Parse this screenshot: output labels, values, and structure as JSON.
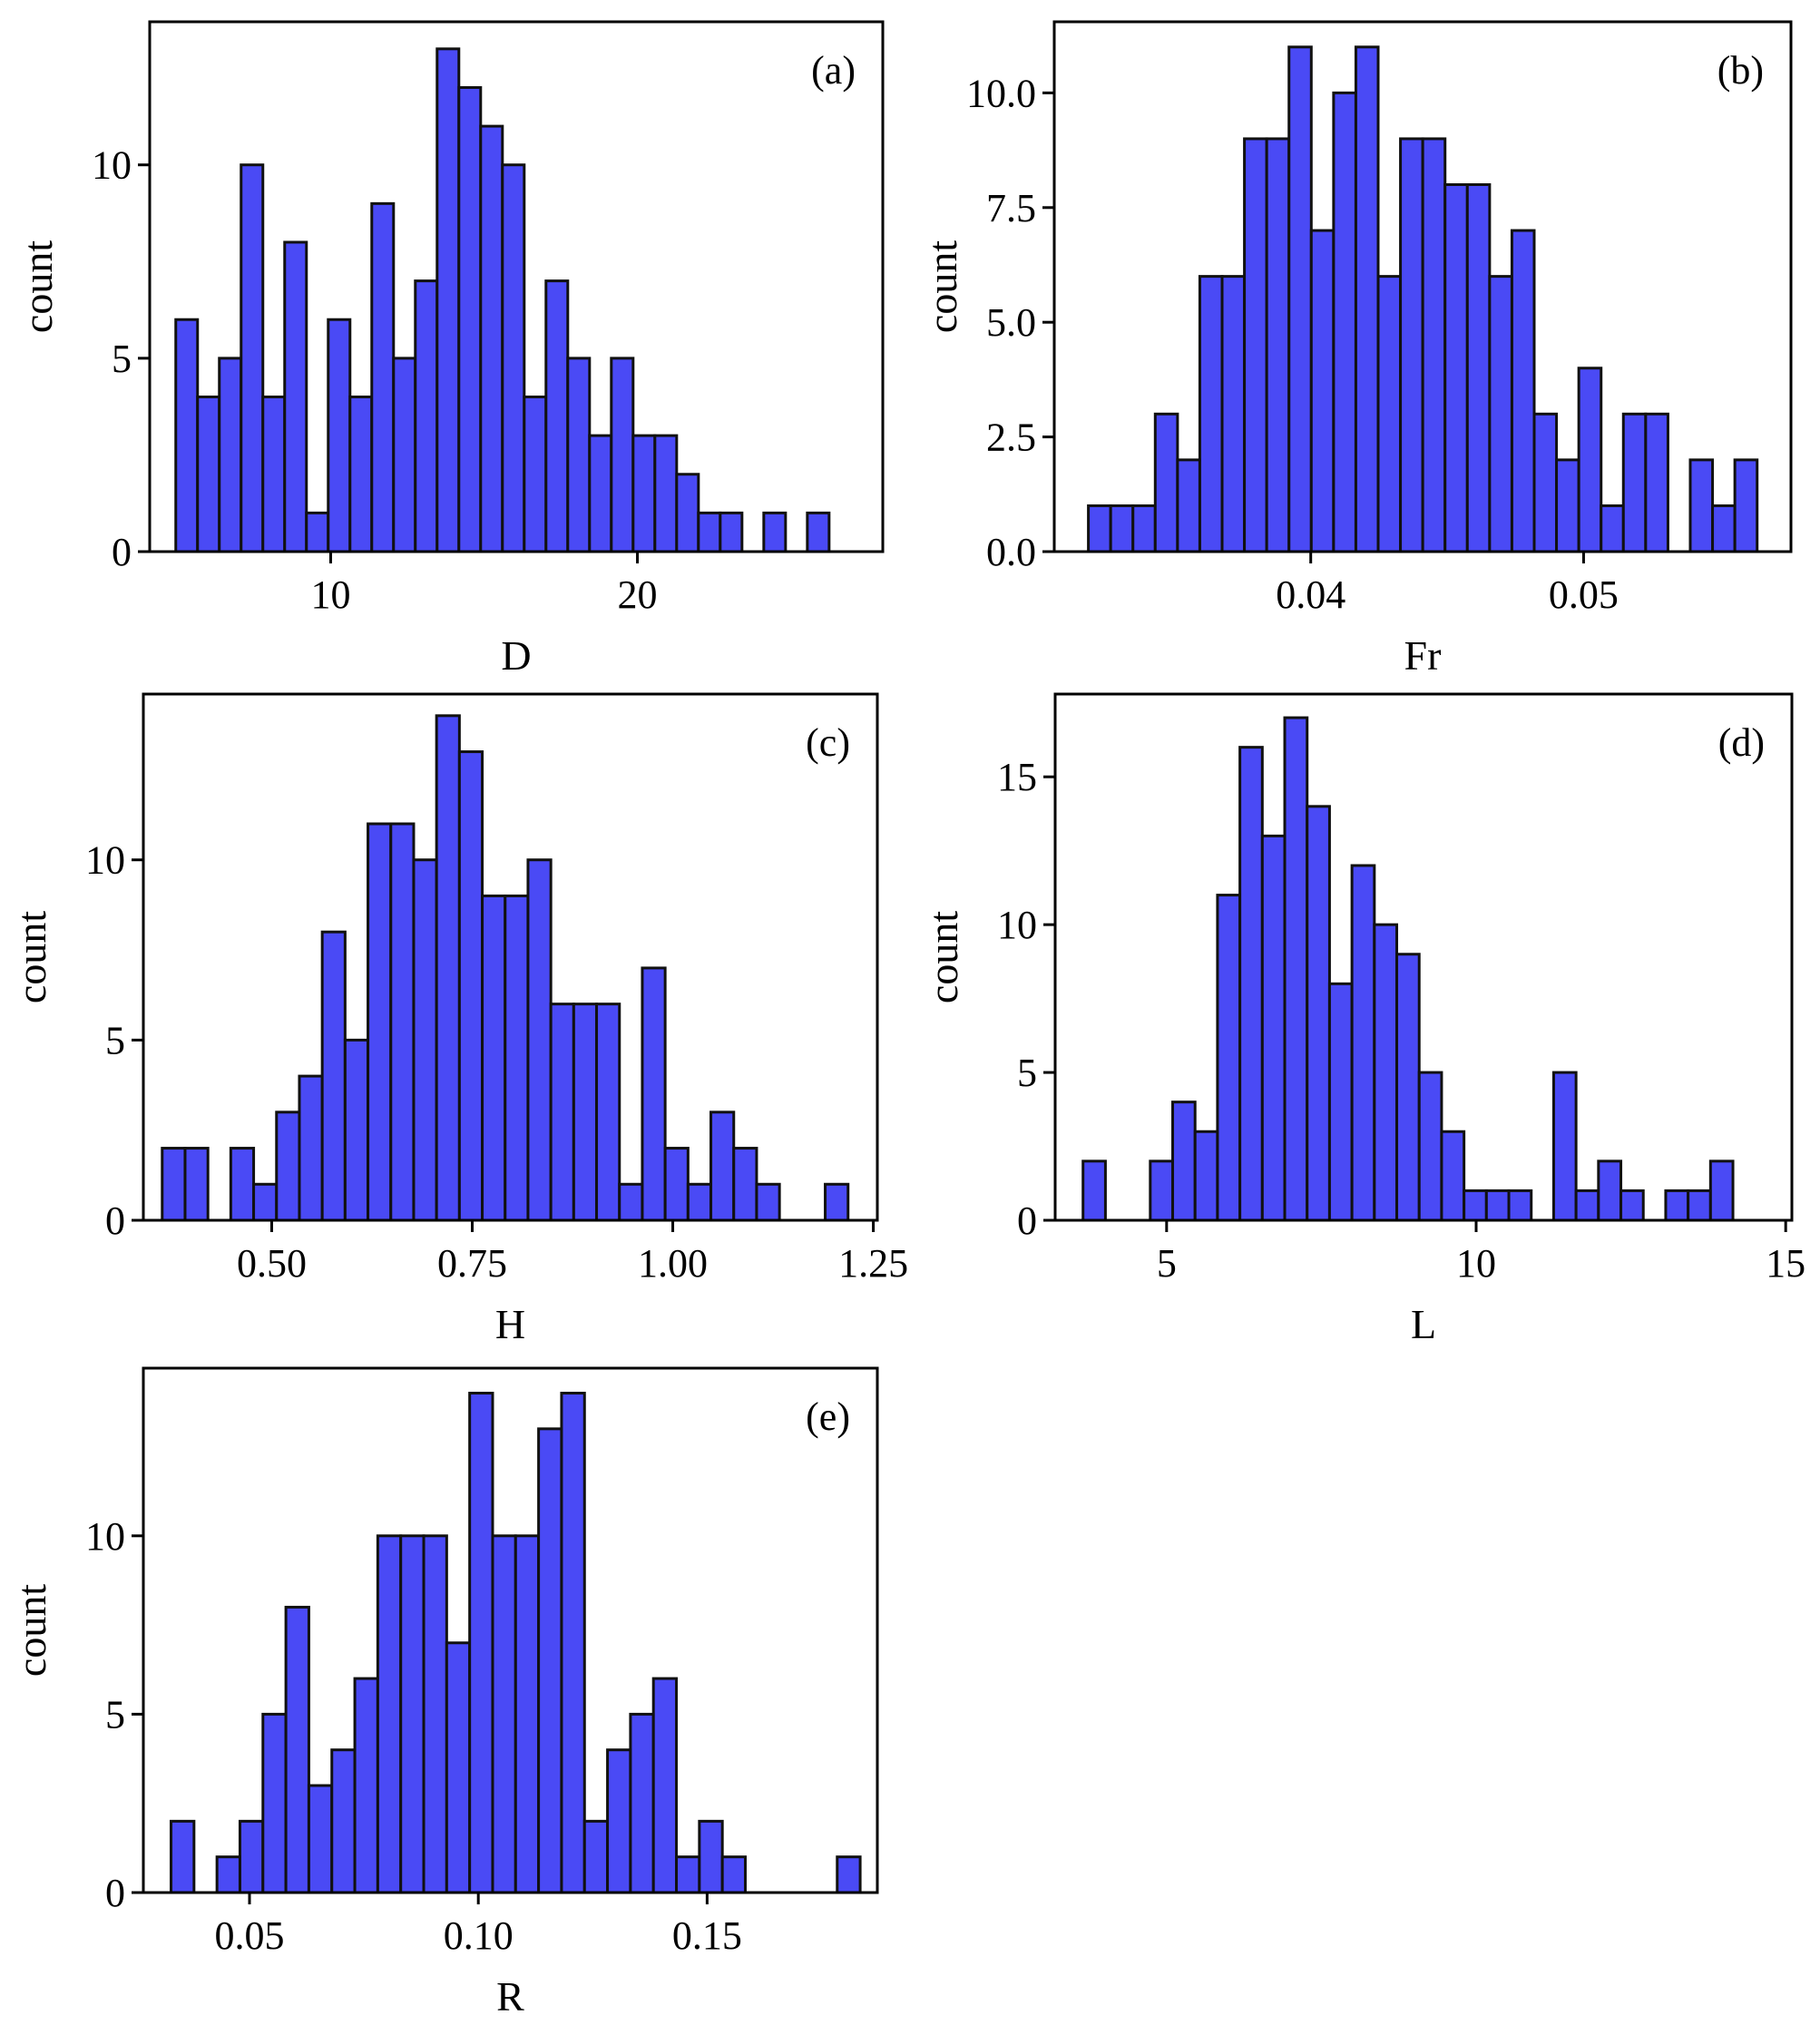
{
  "colors": {
    "bar_fill": "#4a4af5",
    "bar_edge": "#111111",
    "axes": "#000000",
    "background": "#ffffff"
  },
  "chart_data": [
    {
      "id": "a",
      "type": "bar",
      "panel_label": "(a)",
      "xlabel": "D",
      "ylabel": "count",
      "xlim": [
        4.1,
        28.0
      ],
      "ylim": [
        0,
        13.7
      ],
      "xticks": [
        10,
        20
      ],
      "xtick_labels": [
        "10",
        "20"
      ],
      "yticks": [
        0,
        5,
        10
      ],
      "ytick_labels": [
        "0",
        "5",
        "10"
      ],
      "bins_start": 4.95,
      "bin_width": 0.71,
      "counts": [
        6,
        4,
        5,
        10,
        4,
        8,
        1,
        6,
        4,
        9,
        5,
        7,
        13,
        12,
        11,
        10,
        4,
        7,
        5,
        3,
        5,
        3,
        3,
        2,
        1,
        1,
        0,
        1,
        0,
        1
      ]
    },
    {
      "id": "b",
      "type": "bar",
      "panel_label": "(b)",
      "xlabel": "Fr",
      "ylabel": "count",
      "xlim": [
        0.0306,
        0.0576
      ],
      "ylim": [
        0,
        11.55
      ],
      "xticks": [
        0.04,
        0.05
      ],
      "xtick_labels": [
        "0.04",
        "0.05"
      ],
      "yticks": [
        0,
        2.5,
        5.0,
        7.5,
        10.0
      ],
      "ytick_labels": [
        "0.0",
        "2.5",
        "5.0",
        "7.5",
        "10.0"
      ],
      "bins_start": 0.03185,
      "bin_width": 0.000817,
      "counts": [
        1,
        1,
        1,
        3,
        2,
        6,
        6,
        9,
        9,
        11,
        7,
        10,
        11,
        6,
        9,
        9,
        8,
        8,
        6,
        7,
        3,
        2,
        4,
        1,
        3,
        3,
        0,
        2,
        1,
        2
      ]
    },
    {
      "id": "c",
      "type": "bar",
      "panel_label": "(c)",
      "xlabel": "H",
      "ylabel": "count",
      "xlim": [
        0.34,
        1.255
      ],
      "ylim": [
        0,
        14.6
      ],
      "xticks": [
        0.5,
        0.75,
        1.0,
        1.25
      ],
      "xtick_labels": [
        "0.50",
        "0.75",
        "1.00",
        "1.25"
      ],
      "yticks": [
        0,
        5,
        10
      ],
      "ytick_labels": [
        "0",
        "5",
        "10"
      ],
      "bins_start": 0.3635,
      "bin_width": 0.0285,
      "counts": [
        2,
        2,
        0,
        2,
        1,
        3,
        4,
        8,
        5,
        11,
        11,
        10,
        14,
        13,
        9,
        9,
        10,
        6,
        6,
        6,
        1,
        7,
        2,
        1,
        3,
        2,
        1,
        0,
        0,
        1
      ]
    },
    {
      "id": "d",
      "type": "bar",
      "panel_label": "(d)",
      "xlabel": "L",
      "ylabel": "count",
      "xlim": [
        3.2,
        15.1
      ],
      "ylim": [
        0,
        17.8
      ],
      "xticks": [
        5,
        10,
        15
      ],
      "xtick_labels": [
        "5",
        "10",
        "15"
      ],
      "yticks": [
        0,
        5,
        10,
        15
      ],
      "ytick_labels": [
        "0",
        "5",
        "10",
        "15"
      ],
      "bins_start": 3.65,
      "bin_width": 0.362,
      "counts": [
        2,
        0,
        0,
        2,
        4,
        3,
        11,
        16,
        13,
        17,
        14,
        8,
        12,
        10,
        9,
        5,
        3,
        1,
        1,
        1,
        0,
        5,
        1,
        2,
        1,
        0,
        1,
        1,
        2
      ]
    },
    {
      "id": "e",
      "type": "bar",
      "panel_label": "(e)",
      "xlabel": "R",
      "ylabel": "count",
      "xlim": [
        0.0268,
        0.1872
      ],
      "ylim": [
        0,
        14.7
      ],
      "xticks": [
        0.05,
        0.1,
        0.15
      ],
      "xtick_labels": [
        "0.05",
        "0.10",
        "0.15"
      ],
      "yticks": [
        0,
        5,
        10
      ],
      "ytick_labels": [
        "0",
        "5",
        "10"
      ],
      "bins_start": 0.03285,
      "bin_width": 0.00502,
      "counts": [
        2,
        0,
        1,
        2,
        5,
        8,
        3,
        4,
        6,
        10,
        10,
        10,
        7,
        14,
        10,
        10,
        13,
        14,
        2,
        4,
        5,
        6,
        1,
        2,
        1,
        0,
        0,
        0,
        0,
        1
      ]
    }
  ]
}
